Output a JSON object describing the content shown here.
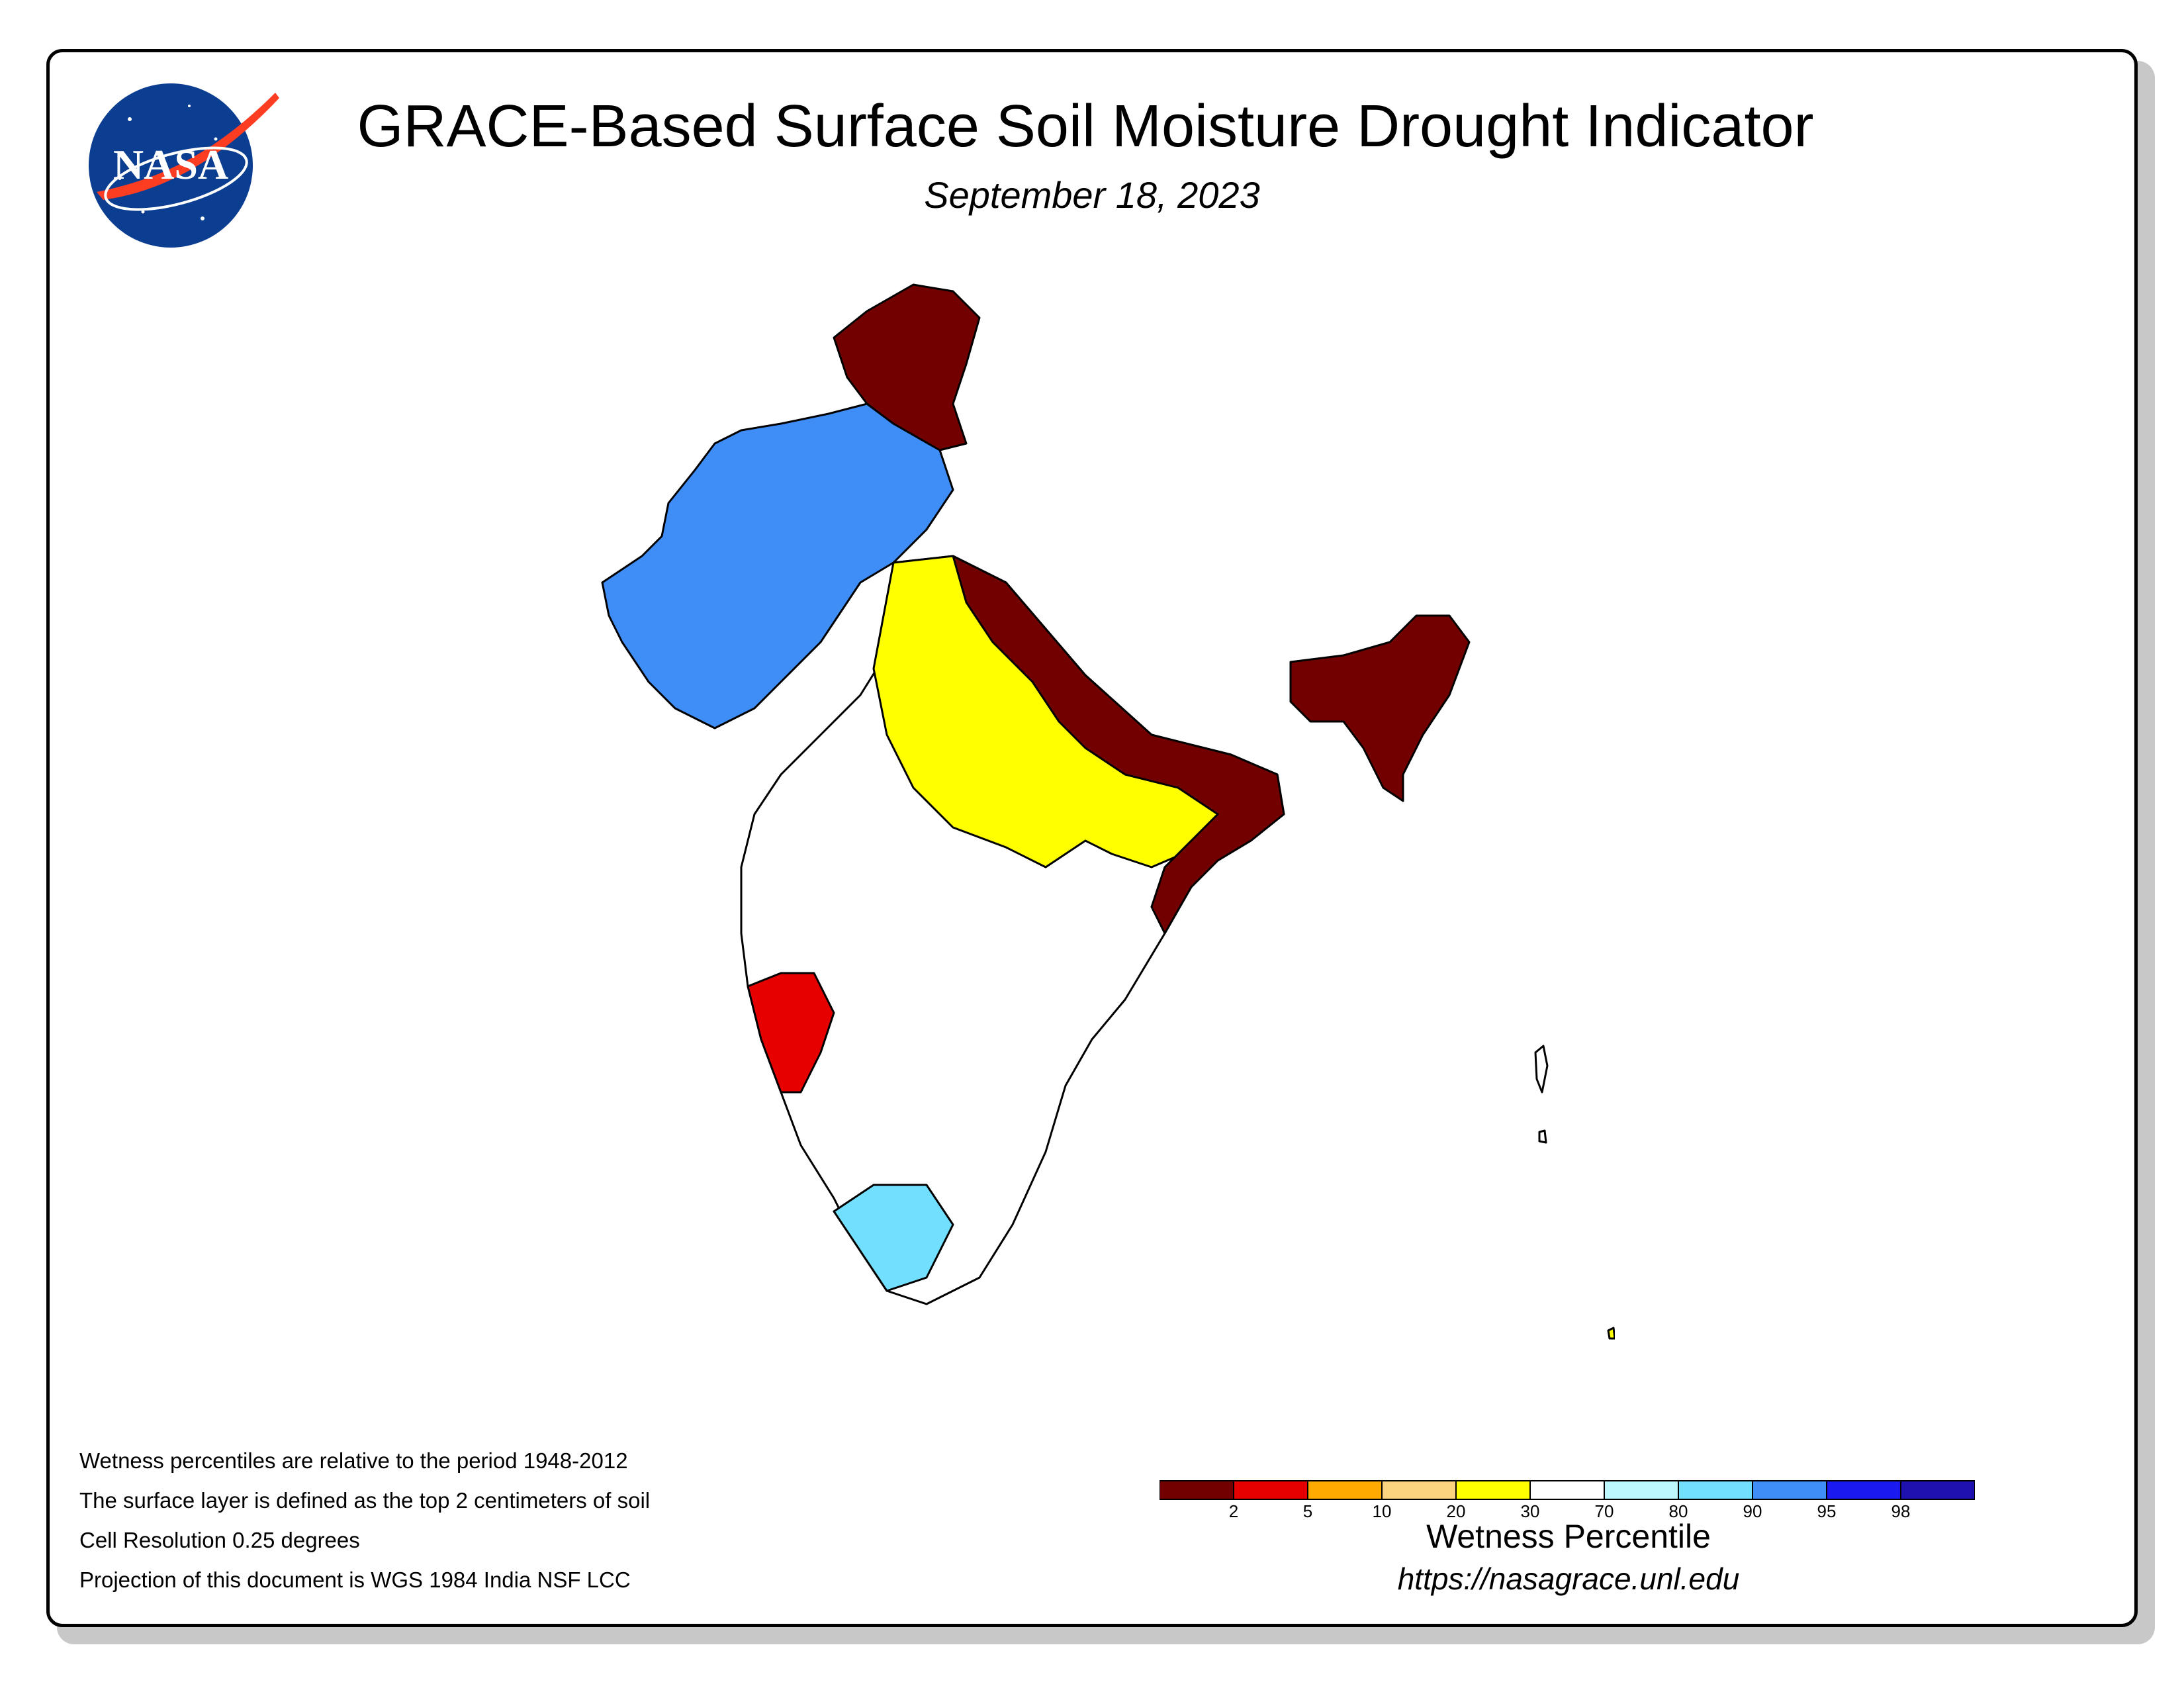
{
  "header": {
    "title": "GRACE-Based Surface Soil Moisture Drought Indicator",
    "subtitle": "September 18, 2023",
    "logo_text": "NASA"
  },
  "notes": [
    "Wetness percentiles are relative to the period 1948-2012",
    "The surface layer is defined as the top 2 centimeters of soil",
    "Cell Resolution 0.25 degrees",
    "Projection of this document is WGS 1984 India NSF LCC"
  ],
  "legend": {
    "title": "Wetness Percentile",
    "url": "https://nasagrace.unl.edu",
    "ticks": [
      "2",
      "5",
      "10",
      "20",
      "30",
      "70",
      "80",
      "90",
      "95",
      "98"
    ],
    "colors": [
      "#730000",
      "#e60000",
      "#ffaa00",
      "#fcd37f",
      "#ffff00",
      "#ffffff",
      "#bef8ff",
      "#73dfff",
      "#3f8df7",
      "#1a1af0",
      "#1f10b0"
    ]
  },
  "map": {
    "region": "India",
    "color_classes": {
      "d2": "#730000",
      "d5": "#e60000",
      "d10": "#ffaa00",
      "d20": "#fcd37f",
      "d30": "#ffff00",
      "normal": "#ffffff",
      "w80": "#bef8ff",
      "w90": "#73dfff",
      "w95": "#3f8df7",
      "w98": "#1a1af0",
      "w99": "#1f10b0"
    }
  }
}
